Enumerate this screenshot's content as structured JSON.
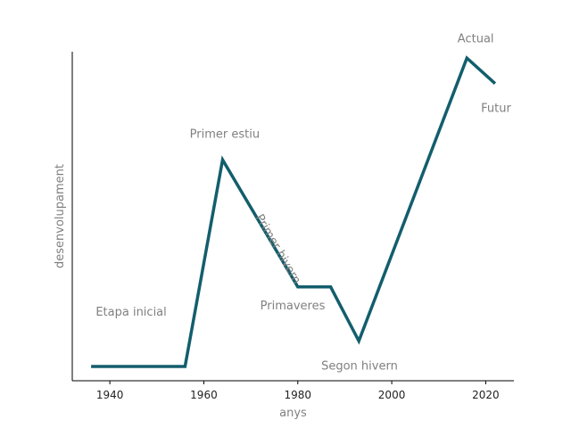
{
  "chart_data": {
    "type": "line",
    "title": "",
    "xlabel": "anys",
    "ylabel": "desenvolupament",
    "xlim": [
      1932,
      2026
    ],
    "ylim": [
      -1.5,
      102
    ],
    "xticks": [
      1940,
      1960,
      1980,
      2000,
      2020
    ],
    "yticks_visible": false,
    "grid": false,
    "legend": "none",
    "series": [
      {
        "color": "#135e6c",
        "x": [
          1936,
          1956,
          1964,
          1980,
          1987,
          1993,
          2016,
          2022
        ],
        "y": [
          3,
          3,
          68,
          28,
          28,
          11,
          100,
          92
        ]
      }
    ],
    "annotations": [
      {
        "text": "Etapa inicial",
        "x": 1937,
        "y": 19,
        "rotation": 0,
        "anchor": "start"
      },
      {
        "text": "Primer estiu",
        "x": 1957,
        "y": 75,
        "rotation": 0,
        "anchor": "start"
      },
      {
        "text": "Primer hivern",
        "x": 1971,
        "y": 50,
        "rotation": 60,
        "anchor": "start"
      },
      {
        "text": "Primaveres",
        "x": 1972,
        "y": 21,
        "rotation": 0,
        "anchor": "start"
      },
      {
        "text": "Segon hivern",
        "x": 1985,
        "y": 2,
        "rotation": 0,
        "anchor": "start"
      },
      {
        "text": "Actual",
        "x": 2014,
        "y": 105,
        "rotation": 0,
        "anchor": "start"
      },
      {
        "text": "Futur",
        "x": 2019,
        "y": 83,
        "rotation": 0,
        "anchor": "start"
      }
    ]
  }
}
